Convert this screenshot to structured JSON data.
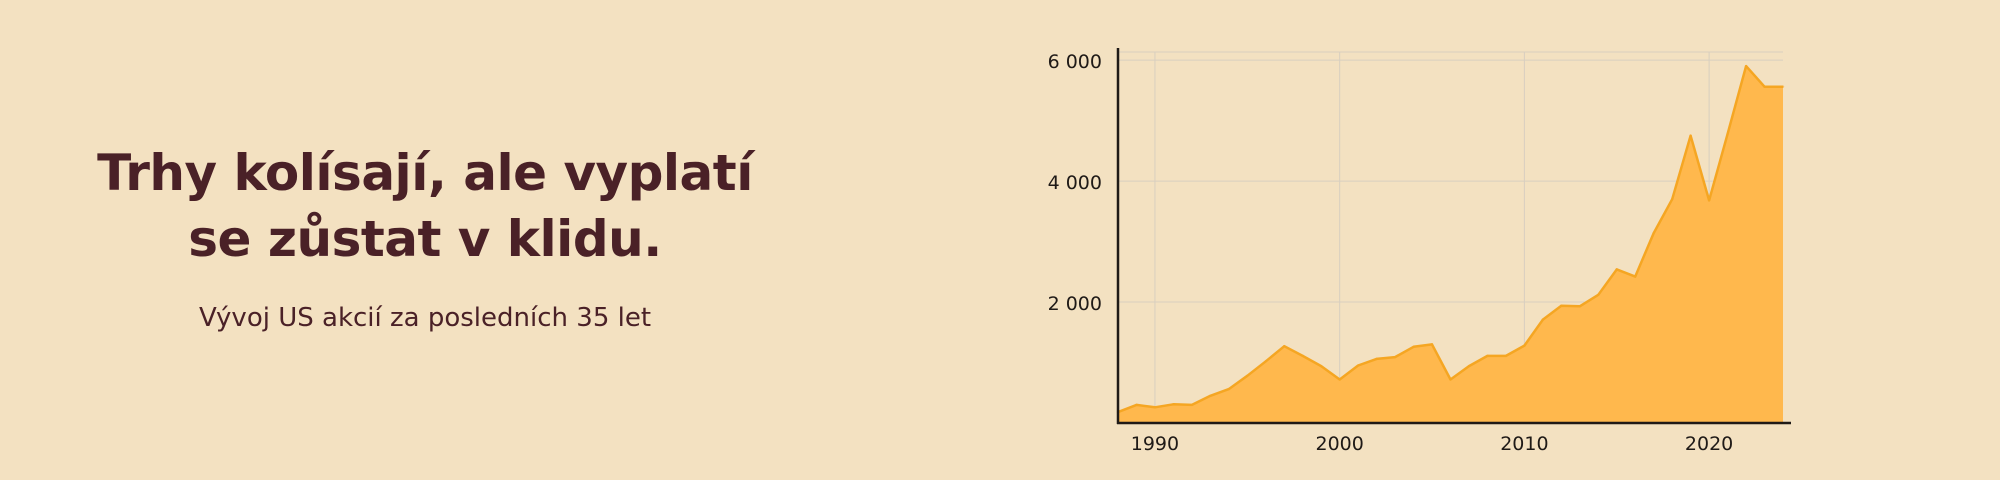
{
  "hero": {
    "headline_line1": "Trhy kolísají, ale vyplatí",
    "headline_line2": "se zůstat v klidu.",
    "subtitle": "Vývoj US akcií za posledních 35 let"
  },
  "colors": {
    "background": "#f3e1c1",
    "text": "#4a2127",
    "area_fill": "#ffb84d",
    "area_stroke": "#f5a623",
    "axis": "#1f1a17",
    "grid": "#d8cfc0"
  },
  "chart_data": {
    "type": "area",
    "title": "",
    "xlabel": "",
    "ylabel": "",
    "x": [
      1988,
      1989,
      1990,
      1991,
      1992,
      1993,
      1994,
      1995,
      1996,
      1997,
      1998,
      1999,
      2000,
      2001,
      2002,
      2003,
      2004,
      2005,
      2006,
      2007,
      2008,
      2009,
      2010,
      2011,
      2012,
      2013,
      2014,
      2015,
      2016,
      2017,
      2018,
      2019,
      2020,
      2021,
      2022,
      2023,
      2024
    ],
    "values": [
      180,
      300,
      260,
      310,
      300,
      450,
      560,
      780,
      1020,
      1270,
      1110,
      940,
      720,
      950,
      1060,
      1090,
      1260,
      1300,
      720,
      940,
      1110,
      1110,
      1280,
      1710,
      1940,
      1930,
      2120,
      2540,
      2420,
      3140,
      3700,
      4750,
      3680,
      4780,
      5900,
      5560,
      5560
    ],
    "xlim": [
      1988,
      2024
    ],
    "ylim": [
      0,
      6200
    ],
    "x_ticks": [
      1990,
      2000,
      2010,
      2020
    ],
    "x_tick_labels": [
      "1990",
      "2000",
      "2010",
      "2020"
    ],
    "y_ticks": [
      2000,
      4000,
      6000
    ],
    "y_tick_labels": [
      "2 000",
      "4 000",
      "6 000"
    ],
    "grid": true,
    "legend": "none"
  }
}
